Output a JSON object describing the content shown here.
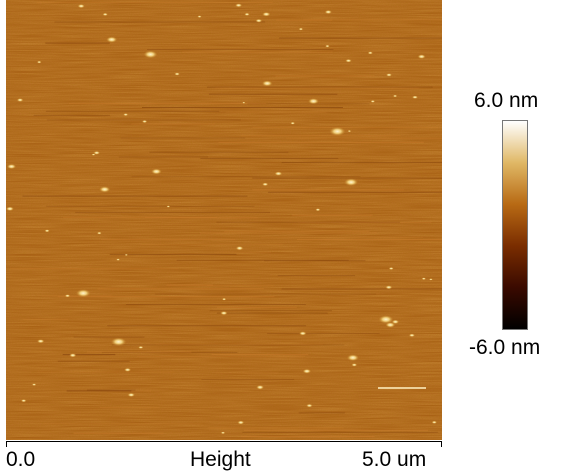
{
  "image": {
    "type": "AFM height map",
    "colormap": [
      "#000000",
      "#3a0a00",
      "#7a2d00",
      "#b86a14",
      "#e0b866",
      "#ffffff"
    ],
    "background_color": "#a35512"
  },
  "axis": {
    "min_label": "0.0",
    "center_label": "Height",
    "max_label": "5.0 um"
  },
  "colorbar": {
    "max_label": "6.0 nm",
    "min_label": "-6.0 nm"
  }
}
